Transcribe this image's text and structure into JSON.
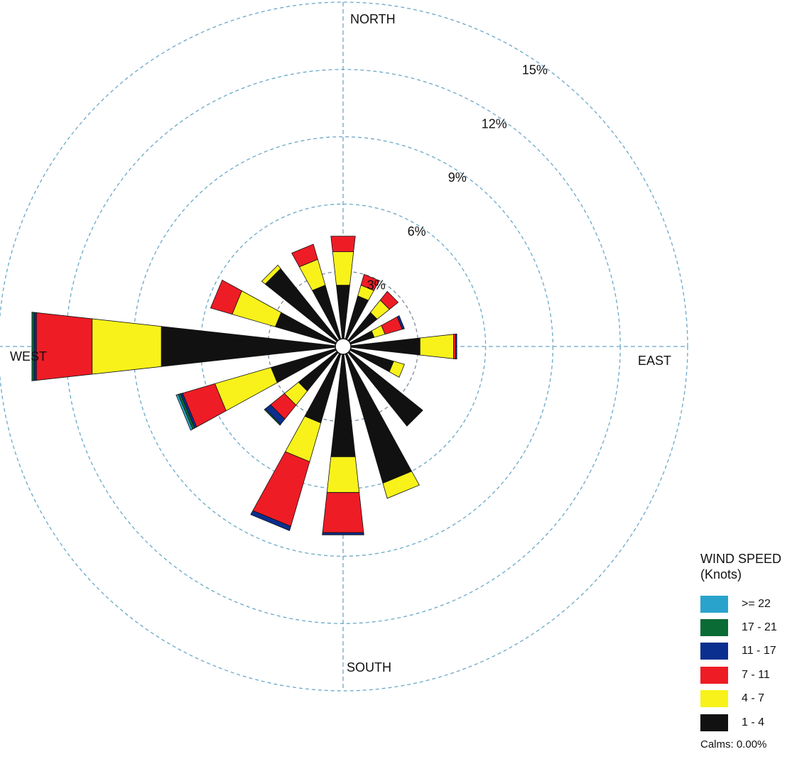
{
  "chart_data": {
    "type": "wind-rose",
    "title": "",
    "direction_labels": {
      "north": "NORTH",
      "east": "EAST",
      "south": "SOUTH",
      "west": "WEST"
    },
    "rings": [
      {
        "value": 3,
        "label": "3%"
      },
      {
        "value": 6,
        "label": "6%"
      },
      {
        "value": 9,
        "label": "9%"
      },
      {
        "value": 12,
        "label": "12%"
      },
      {
        "value": 15,
        "label": "15%"
      }
    ],
    "max_percent": 15,
    "bins": [
      {
        "name": "1 - 4",
        "color": "#111111"
      },
      {
        "name": "4 - 7",
        "color": "#f8f21a"
      },
      {
        "name": "7 - 11",
        "color": "#ee1c25"
      },
      {
        "name": "11 - 17",
        "color": "#0b2f8f"
      },
      {
        "name": "17 - 21",
        "color": "#0a6b35"
      },
      {
        "name": ">= 22",
        "color": "#2aa3cc"
      }
    ],
    "directions": [
      0,
      22.5,
      45,
      67.5,
      90,
      112.5,
      135,
      157.5,
      180,
      202.5,
      225,
      247.5,
      270,
      292.5,
      315,
      337.5
    ],
    "frequencies": [
      [
        2.4,
        1.5,
        0.7,
        0,
        0,
        0
      ],
      [
        2.0,
        0.5,
        0.5,
        0,
        0,
        0
      ],
      [
        1.6,
        0.7,
        0.5,
        0,
        0,
        0
      ],
      [
        1.1,
        0.5,
        0.8,
        0.1,
        0,
        0
      ],
      [
        3.1,
        1.5,
        0.1,
        0.05,
        0,
        0
      ],
      [
        2.0,
        0.5,
        0,
        0,
        0,
        0
      ],
      [
        4.2,
        0,
        0,
        0,
        0,
        0
      ],
      [
        6.0,
        0.7,
        0,
        0,
        0,
        0
      ],
      [
        4.6,
        1.6,
        1.8,
        0.1,
        0,
        0
      ],
      [
        3.2,
        1.8,
        3.0,
        0.2,
        0,
        0
      ],
      [
        2.2,
        0.8,
        0.8,
        0.3,
        0.05,
        0
      ],
      [
        3.0,
        2.6,
        1.5,
        0.1,
        0.1,
        0.1
      ],
      [
        7.8,
        3.1,
        2.5,
        0.1,
        0.1,
        0
      ],
      [
        2.8,
        2.0,
        1.0,
        0,
        0,
        0
      ],
      [
        4.1,
        0.2,
        0,
        0,
        0,
        0
      ],
      [
        2.5,
        1.2,
        0.7,
        0,
        0,
        0
      ]
    ]
  },
  "legend": {
    "title": "WIND SPEED",
    "units": "(Knots)",
    "items": [
      {
        "label": ">= 22",
        "color": "#2aa3cc"
      },
      {
        "label": "17 - 21",
        "color": "#0a6b35"
      },
      {
        "label": "11 - 17",
        "color": "#0b2f8f"
      },
      {
        "label": "7 - 11",
        "color": "#ee1c25"
      },
      {
        "label": "4 - 7",
        "color": "#f8f21a"
      },
      {
        "label": "1 - 4",
        "color": "#111111"
      }
    ],
    "calms": "Calms: 0.00%"
  }
}
